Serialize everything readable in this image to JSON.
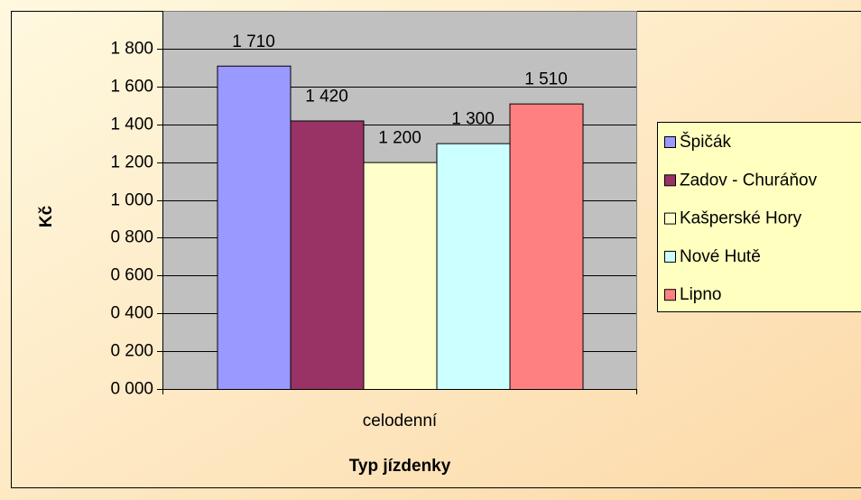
{
  "chart_data": {
    "type": "bar",
    "categories": [
      "celodenní"
    ],
    "series": [
      {
        "name": "Špičák",
        "color": "#9999ff",
        "values": [
          1710
        ],
        "value_labels": [
          "1 710"
        ]
      },
      {
        "name": "Zadov - Churáňov",
        "color": "#993366",
        "values": [
          1420
        ],
        "value_labels": [
          "1 420"
        ]
      },
      {
        "name": "Kašperské Hory",
        "color": "#ffffcc",
        "values": [
          1200
        ],
        "value_labels": [
          "1 200"
        ]
      },
      {
        "name": "Nové Hutě",
        "color": "#ccffff",
        "values": [
          1300
        ],
        "value_labels": [
          "1 300"
        ]
      },
      {
        "name": "Lipno",
        "color": "#ff8080",
        "values": [
          1510
        ],
        "value_labels": [
          "1 510"
        ]
      }
    ],
    "ylabel": "Kč",
    "xlabel": "Typ jízdenky",
    "ylim": [
      0,
      2000
    ],
    "yticks": [
      {
        "value": 0,
        "label": "0 000"
      },
      {
        "value": 200,
        "label": "0 200"
      },
      {
        "value": 400,
        "label": "0 400"
      },
      {
        "value": 600,
        "label": "0 600"
      },
      {
        "value": 800,
        "label": "0 800"
      },
      {
        "value": 1000,
        "label": "1 000"
      },
      {
        "value": 1200,
        "label": "1 200"
      },
      {
        "value": 1400,
        "label": "1 400"
      },
      {
        "value": 1600,
        "label": "1 600"
      },
      {
        "value": 1800,
        "label": "1 800"
      }
    ],
    "grid": true,
    "legend": "right"
  }
}
